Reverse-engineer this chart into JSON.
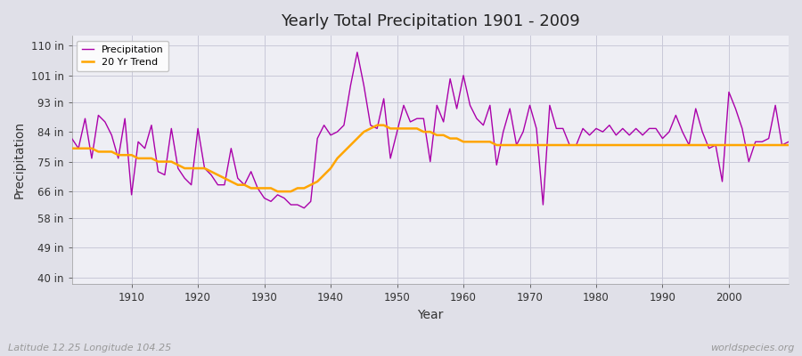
{
  "title": "Yearly Total Precipitation 1901 - 2009",
  "xlabel": "Year",
  "ylabel": "Precipitation",
  "subtitle": "Latitude 12.25 Longitude 104.25",
  "watermark": "worldspecies.org",
  "years": [
    1901,
    1902,
    1903,
    1904,
    1905,
    1906,
    1907,
    1908,
    1909,
    1910,
    1911,
    1912,
    1913,
    1914,
    1915,
    1916,
    1917,
    1918,
    1919,
    1920,
    1921,
    1922,
    1923,
    1924,
    1925,
    1926,
    1927,
    1928,
    1929,
    1930,
    1931,
    1932,
    1933,
    1934,
    1935,
    1936,
    1937,
    1938,
    1939,
    1940,
    1941,
    1942,
    1943,
    1944,
    1945,
    1946,
    1947,
    1948,
    1949,
    1950,
    1951,
    1952,
    1953,
    1954,
    1955,
    1956,
    1957,
    1958,
    1959,
    1960,
    1961,
    1962,
    1963,
    1964,
    1965,
    1966,
    1967,
    1968,
    1969,
    1970,
    1971,
    1972,
    1973,
    1974,
    1975,
    1976,
    1977,
    1978,
    1979,
    1980,
    1981,
    1982,
    1983,
    1984,
    1985,
    1986,
    1987,
    1988,
    1989,
    1990,
    1991,
    1992,
    1993,
    1994,
    1995,
    1996,
    1997,
    1998,
    1999,
    2000,
    2001,
    2002,
    2003,
    2004,
    2005,
    2006,
    2007,
    2008,
    2009
  ],
  "precip": [
    82,
    79,
    88,
    76,
    89,
    87,
    83,
    76,
    88,
    65,
    81,
    79,
    86,
    72,
    71,
    85,
    73,
    70,
    68,
    85,
    73,
    71,
    68,
    68,
    79,
    70,
    68,
    72,
    67,
    64,
    63,
    65,
    64,
    62,
    62,
    61,
    63,
    82,
    86,
    83,
    84,
    86,
    98,
    108,
    98,
    86,
    85,
    94,
    76,
    84,
    92,
    87,
    88,
    88,
    75,
    92,
    87,
    100,
    91,
    101,
    92,
    88,
    86,
    92,
    74,
    84,
    91,
    80,
    84,
    92,
    85,
    62,
    92,
    85,
    85,
    80,
    80,
    85,
    83,
    85,
    84,
    86,
    83,
    85,
    83,
    85,
    83,
    85,
    85,
    82,
    84,
    89,
    84,
    80,
    91,
    84,
    79,
    80,
    69,
    96,
    91,
    85,
    75,
    81,
    81,
    82,
    92,
    80,
    81
  ],
  "trend_years": [
    1901,
    1902,
    1903,
    1904,
    1905,
    1906,
    1907,
    1908,
    1909,
    1910,
    1911,
    1912,
    1913,
    1914,
    1915,
    1916,
    1917,
    1918,
    1919,
    1920,
    1921,
    1922,
    1923,
    1924,
    1925,
    1926,
    1927,
    1928,
    1929,
    1930,
    1931,
    1932,
    1933,
    1934,
    1935,
    1936,
    1937,
    1938,
    1939,
    1940,
    1941,
    1942,
    1943,
    1944,
    1945,
    1946,
    1947,
    1948,
    1949,
    1950,
    1951,
    1952,
    1953,
    1954,
    1955,
    1956,
    1957,
    1958,
    1959,
    1960,
    1961,
    1962,
    1963,
    1964,
    1965,
    1966,
    1967,
    1968,
    1969,
    1970,
    1971,
    1972,
    1973,
    1974,
    1975,
    1976,
    1977,
    1978,
    1979,
    1980,
    1981,
    1982,
    1983,
    1984,
    1985,
    1986,
    1987,
    1988,
    1989,
    1990,
    1991,
    1992,
    1993,
    1994,
    1995,
    1996,
    1997,
    1998,
    1999,
    2000,
    2001,
    2002,
    2003,
    2004,
    2005,
    2006,
    2007,
    2008,
    2009
  ],
  "trend": [
    79,
    79,
    79,
    79,
    78,
    78,
    78,
    77,
    77,
    77,
    76,
    76,
    76,
    75,
    75,
    75,
    74,
    73,
    73,
    73,
    73,
    72,
    71,
    70,
    69,
    68,
    68,
    67,
    67,
    67,
    67,
    66,
    66,
    66,
    67,
    67,
    68,
    69,
    71,
    73,
    76,
    78,
    80,
    82,
    84,
    85,
    86,
    86,
    85,
    85,
    85,
    85,
    85,
    84,
    84,
    83,
    83,
    82,
    82,
    81,
    81,
    81,
    81,
    81,
    80,
    80,
    80,
    80,
    80,
    80,
    80,
    80,
    80,
    80,
    80,
    80,
    80,
    80,
    80,
    80,
    80,
    80,
    80,
    80,
    80,
    80,
    80,
    80,
    80,
    80,
    80,
    80,
    80,
    80,
    80,
    80,
    80,
    80,
    80,
    80,
    80,
    80,
    80,
    80,
    80,
    80,
    80,
    80,
    80
  ],
  "precip_color": "#AA00AA",
  "trend_color": "#FFA500",
  "fig_bg_color": "#E0E0E8",
  "plot_bg_color": "#EEEEF4",
  "grid_color": "#C8C8D8",
  "yticks": [
    40,
    49,
    58,
    66,
    75,
    84,
    93,
    101,
    110
  ],
  "ytick_labels": [
    "40 in",
    "49 in",
    "58 in",
    "66 in",
    "75 in",
    "84 in",
    "93 in",
    "101 in",
    "110 in"
  ],
  "xticks": [
    1910,
    1920,
    1930,
    1940,
    1950,
    1960,
    1970,
    1980,
    1990,
    2000
  ],
  "ylim": [
    38,
    113
  ],
  "xlim": [
    1901,
    2009
  ]
}
